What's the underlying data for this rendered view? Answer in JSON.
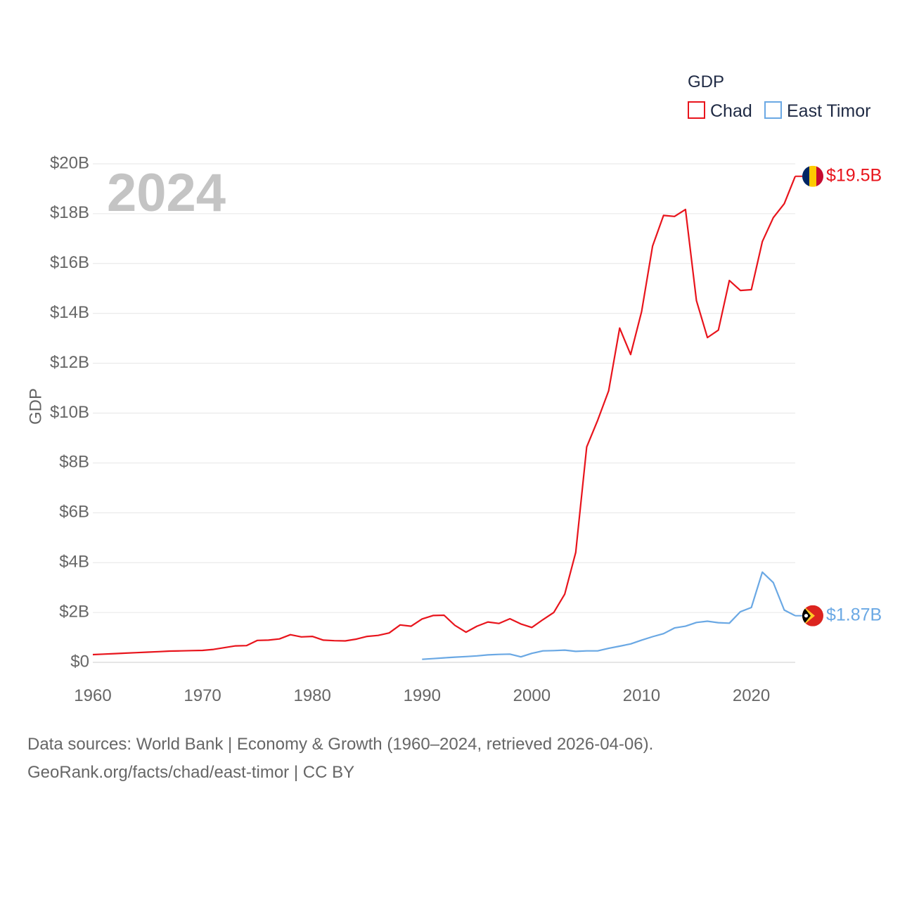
{
  "chart_data": {
    "type": "line",
    "watermark_year": "2024",
    "ylabel": "GDP",
    "legend": {
      "title": "GDP",
      "entries": [
        {
          "name": "Chad",
          "color": "#e8141c"
        },
        {
          "name": "East Timor",
          "color": "#6aa8e4"
        }
      ]
    },
    "xlim": [
      1960,
      2024
    ],
    "x_ticks": [
      1960,
      1970,
      1980,
      1990,
      2000,
      2010,
      2020
    ],
    "ylim": [
      0,
      20
    ],
    "y_ticks": [
      {
        "value": 0,
        "label": "$0"
      },
      {
        "value": 2,
        "label": "$2B"
      },
      {
        "value": 4,
        "label": "$4B"
      },
      {
        "value": 6,
        "label": "$6B"
      },
      {
        "value": 8,
        "label": "$8B"
      },
      {
        "value": 10,
        "label": "$10B"
      },
      {
        "value": 12,
        "label": "$12B"
      },
      {
        "value": 14,
        "label": "$14B"
      },
      {
        "value": 16,
        "label": "$16B"
      },
      {
        "value": 18,
        "label": "$18B"
      },
      {
        "value": 20,
        "label": "$20B"
      }
    ],
    "series": [
      {
        "name": "Chad",
        "color": "#e8141c",
        "end_label": "$19.5B",
        "x": [
          1960,
          1961,
          1962,
          1963,
          1964,
          1965,
          1966,
          1967,
          1968,
          1969,
          1970,
          1971,
          1972,
          1973,
          1974,
          1975,
          1976,
          1977,
          1978,
          1979,
          1980,
          1981,
          1982,
          1983,
          1984,
          1985,
          1986,
          1987,
          1988,
          1989,
          1990,
          1991,
          1992,
          1993,
          1994,
          1995,
          1996,
          1997,
          1998,
          1999,
          2000,
          2001,
          2002,
          2003,
          2004,
          2005,
          2006,
          2007,
          2008,
          2009,
          2010,
          2011,
          2012,
          2013,
          2014,
          2015,
          2016,
          2017,
          2018,
          2019,
          2020,
          2021,
          2022,
          2023,
          2024
        ],
        "values": [
          0.31,
          0.33,
          0.35,
          0.37,
          0.39,
          0.41,
          0.43,
          0.45,
          0.46,
          0.47,
          0.48,
          0.52,
          0.59,
          0.66,
          0.67,
          0.88,
          0.89,
          0.94,
          1.11,
          1.02,
          1.04,
          0.89,
          0.87,
          0.86,
          0.93,
          1.04,
          1.08,
          1.18,
          1.5,
          1.45,
          1.74,
          1.88,
          1.89,
          1.48,
          1.21,
          1.45,
          1.62,
          1.56,
          1.75,
          1.54,
          1.4,
          1.71,
          2.0,
          2.74,
          4.41,
          8.64,
          9.71,
          10.89,
          13.41,
          12.35,
          14.07,
          16.7,
          17.93,
          17.89,
          18.17,
          14.51,
          13.03,
          13.33,
          15.32,
          14.92,
          14.95,
          16.88,
          17.84,
          18.4,
          19.5
        ]
      },
      {
        "name": "East Timor",
        "color": "#6aa8e4",
        "end_label": "$1.87B",
        "x": [
          1990,
          1991,
          1992,
          1993,
          1994,
          1995,
          1996,
          1997,
          1998,
          1999,
          2000,
          2001,
          2002,
          2003,
          2004,
          2005,
          2006,
          2007,
          2008,
          2009,
          2010,
          2011,
          2012,
          2013,
          2014,
          2015,
          2016,
          2017,
          2018,
          2019,
          2020,
          2021,
          2022,
          2023,
          2024
        ],
        "values": [
          0.12,
          0.15,
          0.18,
          0.21,
          0.23,
          0.26,
          0.3,
          0.32,
          0.33,
          0.22,
          0.36,
          0.46,
          0.47,
          0.49,
          0.44,
          0.46,
          0.46,
          0.56,
          0.65,
          0.74,
          0.89,
          1.03,
          1.15,
          1.38,
          1.45,
          1.6,
          1.65,
          1.59,
          1.57,
          2.03,
          2.2,
          3.62,
          3.2,
          2.1,
          1.87
        ]
      }
    ],
    "source_lines": [
      "Data sources: World Bank | Economy & Growth (1960–2024, retrieved 2026-04-06).",
      "GeoRank.org/facts/chad/east-timor | CC BY"
    ]
  }
}
